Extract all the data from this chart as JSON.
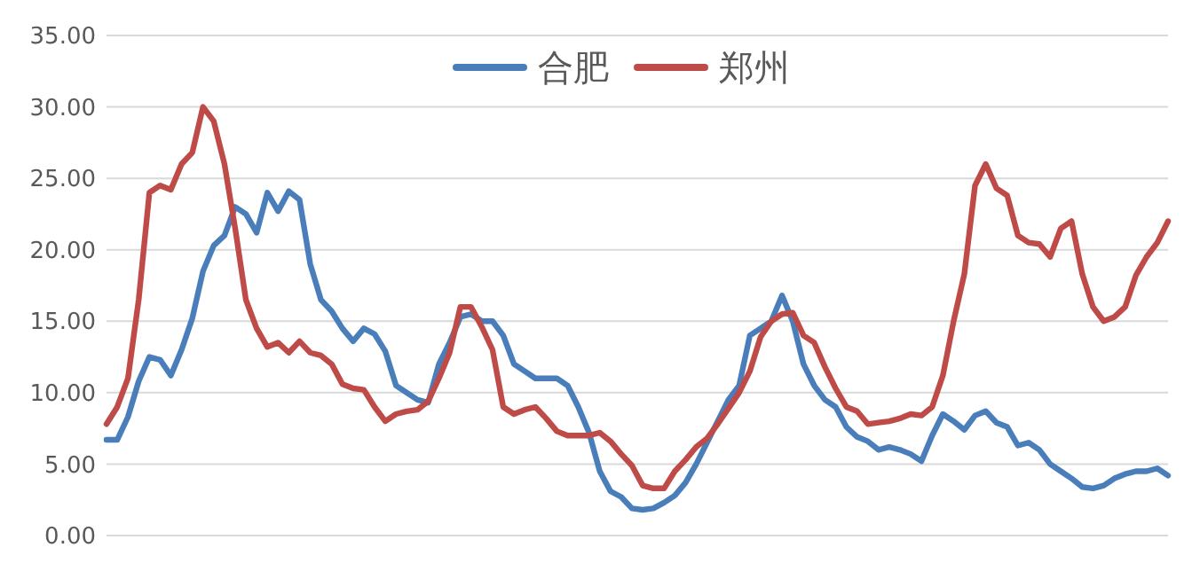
{
  "chart_data": {
    "type": "line",
    "ylim": [
      0,
      35
    ],
    "categories": [
      null,
      null,
      null,
      null,
      null,
      null,
      null,
      null,
      null,
      null,
      null,
      null,
      null,
      null,
      null,
      null,
      null,
      null,
      null,
      null,
      null,
      null,
      null,
      null,
      null,
      null,
      null,
      null,
      null,
      null,
      null,
      null,
      null,
      null,
      null,
      null,
      null,
      null,
      null,
      null,
      null,
      null,
      null,
      null,
      null,
      null,
      null,
      null,
      null,
      null,
      null,
      null,
      null,
      null,
      null,
      null,
      null,
      null,
      null,
      null,
      null,
      null,
      null,
      null,
      null,
      null,
      null,
      null,
      null,
      null,
      null,
      null,
      null,
      null,
      null,
      null,
      null,
      null,
      null,
      null,
      null,
      null,
      null,
      null,
      null,
      null,
      null,
      null,
      null,
      null,
      null,
      null,
      null,
      null,
      null,
      null,
      null,
      null,
      null,
      null
    ],
    "yticks": [
      {
        "value": 0,
        "label": "0.00"
      },
      {
        "value": 5,
        "label": "5.00"
      },
      {
        "value": 10,
        "label": "10.00"
      },
      {
        "value": 15,
        "label": "15.00"
      },
      {
        "value": 20,
        "label": "20.00"
      },
      {
        "value": 25,
        "label": "25.00"
      },
      {
        "value": 30,
        "label": "30.00"
      },
      {
        "value": 35,
        "label": "35.00"
      }
    ],
    "grid": "y",
    "legend": "top",
    "marker": "none",
    "line_style": "solid",
    "series": [
      {
        "name": "合肥",
        "color": "#4a7ebb",
        "values": [
          6.7,
          6.7,
          8.3,
          10.8,
          12.5,
          12.3,
          11.2,
          13,
          15.2,
          18.5,
          20.3,
          21,
          23,
          22.5,
          21.2,
          24,
          22.7,
          24.1,
          23.5,
          19,
          16.5,
          15.7,
          14.5,
          13.6,
          14.5,
          14.1,
          12.9,
          10.5,
          10,
          9.5,
          9.3,
          12,
          13.5,
          15.3,
          15.5,
          15,
          15,
          14,
          12,
          11.5,
          11,
          11,
          11,
          10.5,
          9,
          7.2,
          4.5,
          3.1,
          2.7,
          1.9,
          1.8,
          1.9,
          2.3,
          2.8,
          3.7,
          5,
          6.5,
          8,
          9.5,
          10.5,
          14,
          14.5,
          15,
          16.8,
          15,
          12,
          10.5,
          9.5,
          9,
          7.6,
          6.9,
          6.6,
          6,
          6.2,
          6,
          5.7,
          5.2,
          7,
          8.5,
          8,
          7.4,
          8.4,
          8.7,
          7.9,
          7.6,
          6.3,
          6.5,
          6,
          5,
          4.5,
          4,
          3.4,
          3.3,
          3.5,
          4,
          4.3,
          4.5,
          4.5,
          4.7,
          4.2
        ]
      },
      {
        "name": "郑州",
        "color": "#be4b48",
        "values": [
          7.8,
          9,
          11,
          16.5,
          24,
          24.5,
          24.2,
          26,
          26.8,
          30,
          29,
          26,
          21.5,
          16.5,
          14.5,
          13.2,
          13.5,
          12.8,
          13.6,
          12.8,
          12.6,
          12,
          10.6,
          10.3,
          10.2,
          9,
          8,
          8.5,
          8.7,
          8.8,
          9.4,
          11,
          12.8,
          16,
          16,
          14.6,
          13,
          9,
          8.5,
          8.8,
          9,
          8.2,
          7.3,
          7,
          7,
          7,
          7.2,
          6.6,
          5.7,
          4.9,
          3.5,
          3.3,
          3.3,
          4.5,
          5.3,
          6.2,
          6.8,
          7.8,
          8.9,
          10,
          11.5,
          13.9,
          15,
          15.5,
          15.6,
          14,
          13.5,
          11.8,
          10.3,
          9,
          8.7,
          7.8,
          7.9,
          8,
          8.2,
          8.5,
          8.4,
          9,
          11.2,
          15,
          18.3,
          24.5,
          26,
          24.3,
          23.8,
          21,
          20.5,
          20.4,
          19.5,
          21.5,
          22,
          18.3,
          16,
          15,
          15.3,
          16,
          18.2,
          19.5,
          20.5,
          22
        ]
      }
    ]
  }
}
